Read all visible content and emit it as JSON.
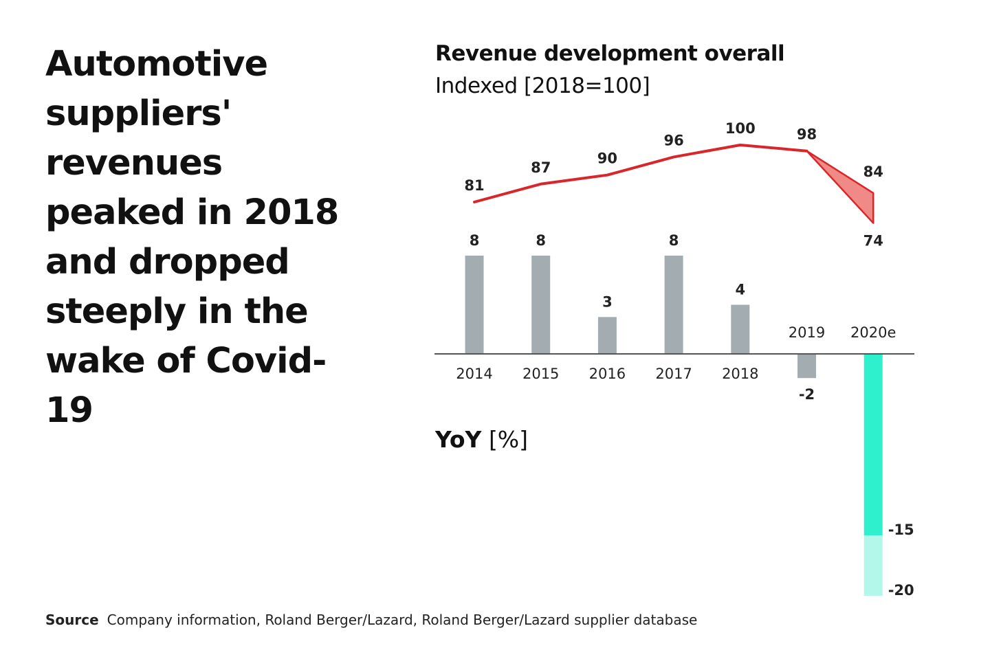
{
  "headline": "Automotive suppliers' revenues peaked in 2018 and dropped steeply in the wake of Covid-19",
  "source": {
    "label": "Source",
    "text": "Company information, Roland Berger/Lazard, Roland Berger/Lazard supplier database"
  },
  "chart_data": {
    "type": "line+bar",
    "title": "Revenue development overall",
    "subtitle": "Indexed [2018=100]",
    "yoy_label_bold": "YoY",
    "yoy_label_unit": "[%]",
    "categories": [
      "2014",
      "2015",
      "2016",
      "2017",
      "2018",
      "2019",
      "2020e"
    ],
    "revenue_index": {
      "name": "Revenue development overall",
      "values": [
        81,
        87,
        90,
        96,
        100,
        98
      ],
      "range_2020e": {
        "low": 74,
        "high": 84
      },
      "color": "#d9262b",
      "range_fill": "#f08a86"
    },
    "yoy": {
      "name": "YoY [%]",
      "values": [
        8,
        8,
        3,
        8,
        4,
        -2
      ],
      "range_2020e": {
        "base": -15,
        "low": -20
      },
      "bar_color": "#a3adb1",
      "range_color": "#2ff0cc",
      "range_light_color": "#b2f7ea"
    },
    "axis_color": "#555555"
  }
}
